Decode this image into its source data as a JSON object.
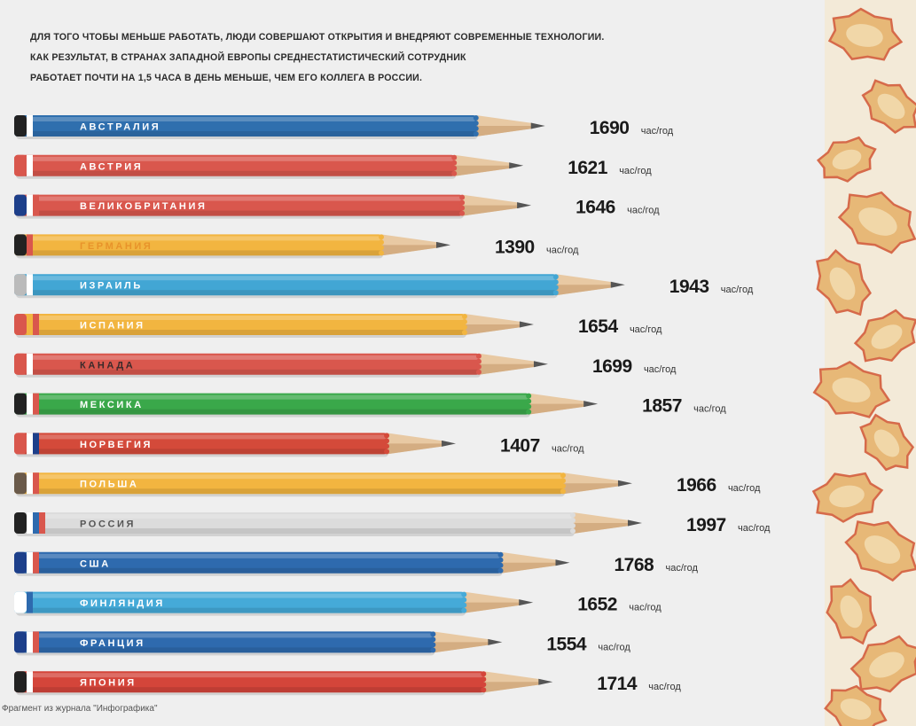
{
  "headline": {
    "line1": "ДЛЯ ТОГО ЧТОБЫ МЕНЬШЕ РАБОТАТЬ, ЛЮДИ СОВЕРШАЮТ ОТКРЫТИЯ И ВНЕДРЯЮТ СОВРЕМЕННЫЕ ТЕХНОЛОГИИ.",
    "line2": "КАК РЕЗУЛЬТАТ, В СТРАНАХ ЗАПАДНОЙ ЕВРОПЫ СРЕДНЕСТАТИСТИЧЕСКИЙ СОТРУДНИК",
    "line3": "РАБОТАЕТ ПОЧТИ НА 1,5 ЧАСА В ДЕНЬ МЕНЬШЕ, ЧЕМ ЕГО КОЛЛЕГА В РОССИИ."
  },
  "source": "Фрагмент из журнала \"Инфографика\"",
  "chart_data": {
    "type": "bar",
    "orientation": "horizontal",
    "unit": "час/год",
    "categories": [
      "АВСТРАЛИЯ",
      "АВСТРИЯ",
      "ВЕЛИКОБРИТАНИЯ",
      "ГЕРМАНИЯ",
      "ИЗРАИЛЬ",
      "ИСПАНИЯ",
      "КАНАДА",
      "МЕКСИКА",
      "НОРВЕГИЯ",
      "ПОЛЬША",
      "РОССИЯ",
      "США",
      "ФИНЛЯНДИЯ",
      "ФРАНЦИЯ",
      "ЯПОНИЯ"
    ],
    "values": [
      1690,
      1621,
      1646,
      1390,
      1943,
      1654,
      1699,
      1857,
      1407,
      1966,
      1997,
      1768,
      1652,
      1554,
      1714
    ],
    "colors": [
      "#2f6fae",
      "#d9574d",
      "#d9574d",
      "#f2b540",
      "#42a6d4",
      "#f2b540",
      "#d9574d",
      "#3aa84a",
      "#d44a3a",
      "#f2b540",
      "#dcdcdc",
      "#2e6aae",
      "#45aad8",
      "#2e6aae",
      "#d4453a"
    ],
    "label_colors": [
      "#ffffff",
      "#ffffff",
      "#ffffff",
      "#e8932a",
      "#ffffff",
      "#ffffff",
      "#3a2a2a",
      "#ffffff",
      "#ffffff",
      "#ffffff",
      "#555555",
      "#ffffff",
      "#ffffff",
      "#ffffff",
      "#ffffff"
    ],
    "cap_colors": [
      [
        "#222222",
        "#ffffff"
      ],
      [
        "#d9574d",
        "#ffffff"
      ],
      [
        "#1d3f8a",
        "#ffffff",
        "#d9574d"
      ],
      [
        "#222222",
        "#d9574d"
      ],
      [
        "#bbbbbb",
        "#ffffff"
      ],
      [
        "#d9574d",
        "#f2b540",
        "#d9574d"
      ],
      [
        "#d9574d",
        "#ffffff"
      ],
      [
        "#222222",
        "#ffffff",
        "#d9574d"
      ],
      [
        "#d9574d",
        "#ffffff",
        "#1d3f8a"
      ],
      [
        "#6a5a4a",
        "#ffffff",
        "#d9574d"
      ],
      [
        "#222222",
        "#ffffff",
        "#2e6aae",
        "#d9574d"
      ],
      [
        "#1d3f8a",
        "#ffffff",
        "#d9574d"
      ],
      [
        "#ffffff",
        "#2e6aae"
      ],
      [
        "#1d3f8a",
        "#ffffff",
        "#d9574d"
      ],
      [
        "#222222",
        "#ffffff"
      ]
    ]
  }
}
